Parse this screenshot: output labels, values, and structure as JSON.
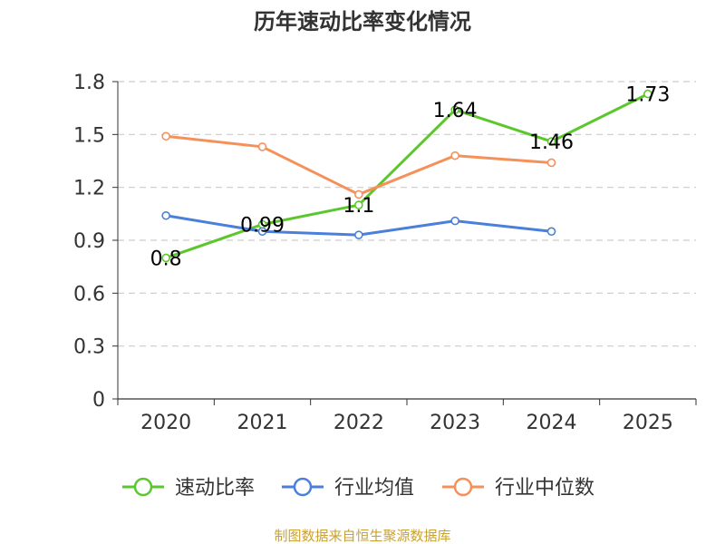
{
  "chart_data": {
    "type": "line",
    "title": "历年速动比率变化情况",
    "xlabel": "",
    "ylabel": "",
    "categories": [
      "2020",
      "2021",
      "2022",
      "2023",
      "2024",
      "2025"
    ],
    "ylim": [
      0,
      1.8
    ],
    "yticks": [
      "0",
      "0.3",
      "0.6",
      "0.9",
      "1.2",
      "1.5",
      "1.8"
    ],
    "grid": true,
    "legend_position": "bottom",
    "series": [
      {
        "name": "速动比率",
        "color": "#5cc72c",
        "values": [
          0.8,
          0.99,
          1.1,
          1.64,
          1.46,
          1.73
        ],
        "labels": [
          "0.8",
          "0.99",
          "1.1",
          "1.64",
          "1.46",
          "1.73"
        ]
      },
      {
        "name": "行业均值",
        "color": "#4a7fdb",
        "values": [
          1.04,
          0.95,
          0.93,
          1.01,
          0.95,
          null
        ]
      },
      {
        "name": "行业中位数",
        "color": "#f6905a",
        "values": [
          1.49,
          1.43,
          1.16,
          1.38,
          1.34,
          null
        ]
      }
    ]
  },
  "source": "制图数据来自恒生聚源数据库"
}
